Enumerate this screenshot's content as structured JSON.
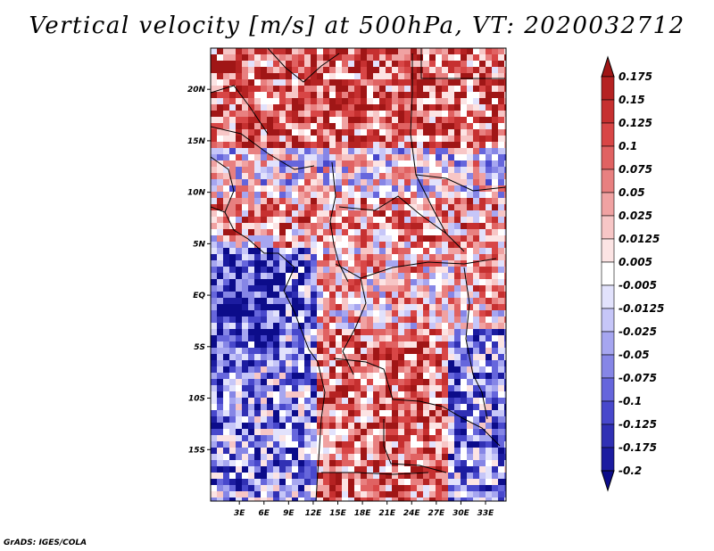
{
  "title": "Vertical velocity [m/s] at 500hPa, VT: 2020032712",
  "credit": "GrADS: IGES/COLA",
  "chart_data": {
    "type": "heatmap",
    "title": "Vertical velocity [m/s] at 500hPa, VT: 2020032712",
    "variable": "Vertical velocity",
    "units": "m/s",
    "level": "500hPa",
    "valid_time": "2020032712",
    "xlim": [
      -0.5,
      35.5
    ],
    "ylim": [
      -20,
      24
    ],
    "grid": false,
    "x_ticks": [
      {
        "value": 3,
        "label": "3E"
      },
      {
        "value": 6,
        "label": "6E"
      },
      {
        "value": 9,
        "label": "9E"
      },
      {
        "value": 12,
        "label": "12E"
      },
      {
        "value": 15,
        "label": "15E"
      },
      {
        "value": 18,
        "label": "18E"
      },
      {
        "value": 21,
        "label": "21E"
      },
      {
        "value": 24,
        "label": "24E"
      },
      {
        "value": 27,
        "label": "27E"
      },
      {
        "value": 30,
        "label": "30E"
      },
      {
        "value": 33,
        "label": "33E"
      }
    ],
    "y_ticks": [
      {
        "value": 20,
        "label": "20N"
      },
      {
        "value": 15,
        "label": "15N"
      },
      {
        "value": 10,
        "label": "10N"
      },
      {
        "value": 5,
        "label": "5N"
      },
      {
        "value": 0,
        "label": "EQ"
      },
      {
        "value": -5,
        "label": "5S"
      },
      {
        "value": -10,
        "label": "10S"
      },
      {
        "value": -15,
        "label": "15S"
      }
    ],
    "colorbar": {
      "placement": "right",
      "labels": [
        "0.175",
        "0.15",
        "0.125",
        "0.1",
        "0.075",
        "0.05",
        "0.025",
        "0.0125",
        "0.005",
        "-0.005",
        "-0.0125",
        "-0.025",
        "-0.05",
        "-0.075",
        "-0.1",
        "-0.125",
        "-0.175",
        "-0.2"
      ],
      "colors": [
        "#a01616",
        "#b52222",
        "#c63030",
        "#d84646",
        "#e06262",
        "#e88080",
        "#f0a2a2",
        "#f7c6c6",
        "#fce4e4",
        "#ffffff",
        "#e2e2fc",
        "#c6c6f8",
        "#a6a6f0",
        "#8686e6",
        "#6666dc",
        "#4848cc",
        "#3030b4",
        "#1c1ca0",
        "#0c0c8a"
      ]
    }
  }
}
